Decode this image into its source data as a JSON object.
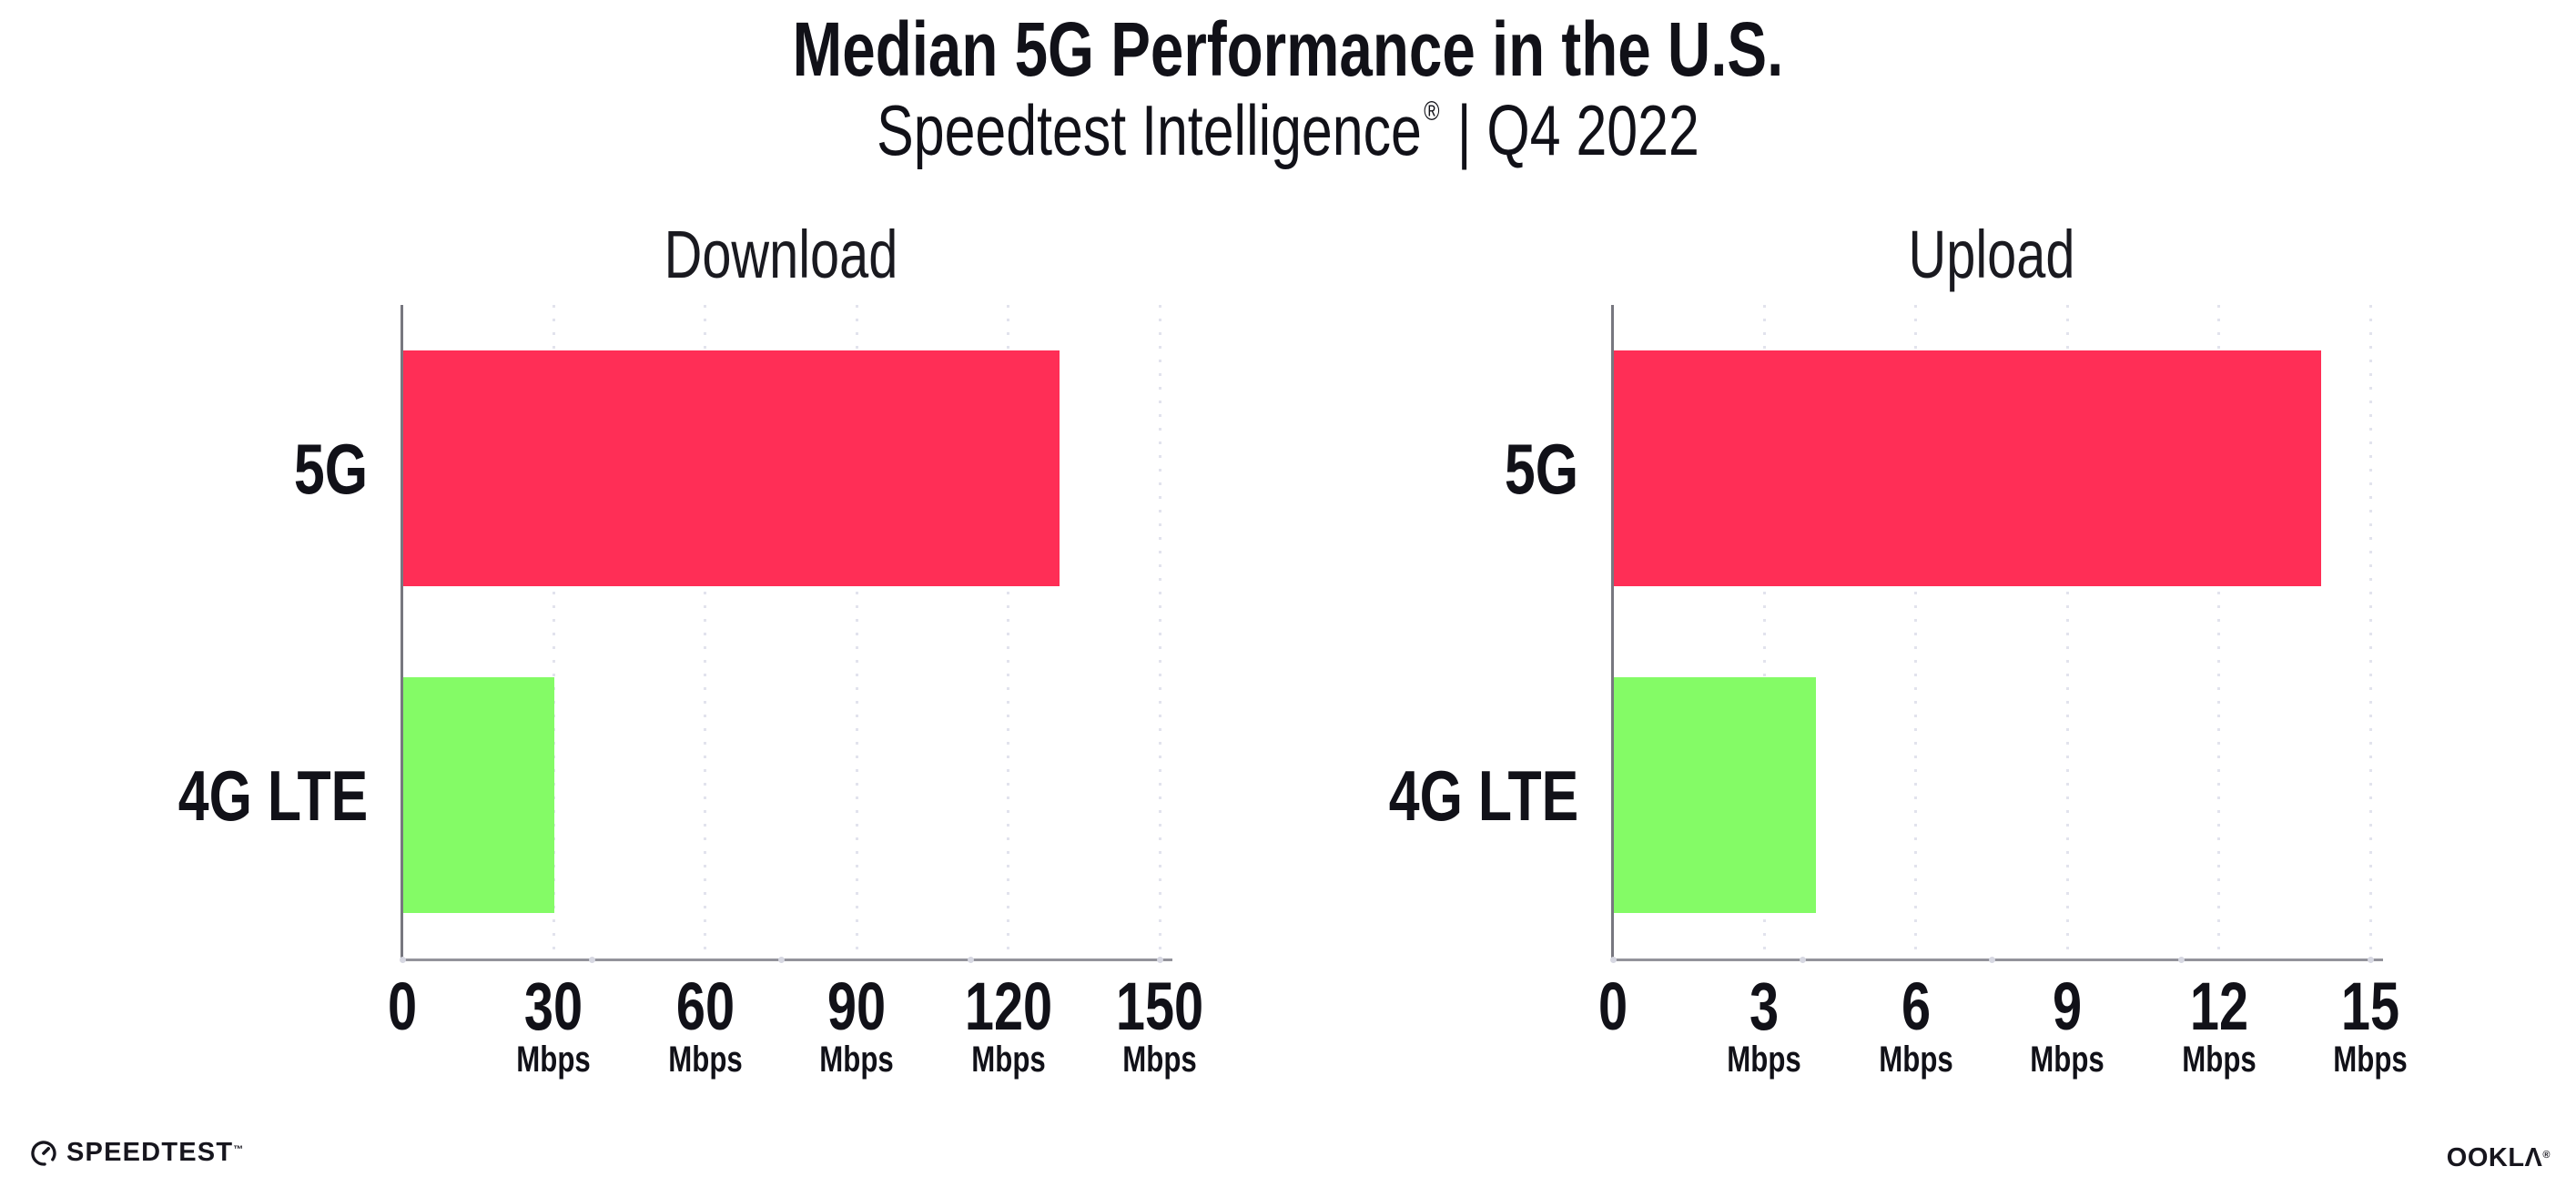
{
  "header": {
    "title": "Median 5G Performance in the U.S.",
    "subtitle_brand": "Speedtest Intelligence",
    "subtitle_reg": "®",
    "subtitle_rest": " | Q4 2022"
  },
  "colors": {
    "bar_5g": "#FF2E56",
    "bar_4g": "#84FB66",
    "grid": "#E2E3ED",
    "axis_x": "#93939B",
    "axis_y": "#77777F",
    "quarter_dot": "#D6D7E1",
    "text": "#111118",
    "logo": "#17161E"
  },
  "chart_data": [
    {
      "type": "bar",
      "orientation": "horizontal",
      "title": "Download",
      "categories": [
        "5G",
        "4G LTE"
      ],
      "values": [
        130,
        30
      ],
      "unit": "Mbps",
      "xlim": [
        0,
        150
      ],
      "xticks": [
        0,
        30,
        60,
        90,
        120,
        150
      ],
      "grid": "dotted-vertical",
      "legend": "none",
      "bar_colors": [
        "#FF2E56",
        "#84FB66"
      ]
    },
    {
      "type": "bar",
      "orientation": "horizontal",
      "title": "Upload",
      "categories": [
        "5G",
        "4G LTE"
      ],
      "values": [
        14,
        4
      ],
      "unit": "Mbps",
      "xlim": [
        0,
        15
      ],
      "xticks": [
        0,
        3,
        6,
        9,
        12,
        15
      ],
      "grid": "dotted-vertical",
      "legend": "none",
      "bar_colors": [
        "#FF2E56",
        "#84FB66"
      ]
    }
  ],
  "footer": {
    "speedtest_label": "SPEEDTEST",
    "speedtest_mark": "™",
    "speedtest_icon": "speedtest-gauge-icon",
    "ookla_label": "OOKLΛ",
    "ookla_mark": "®"
  }
}
